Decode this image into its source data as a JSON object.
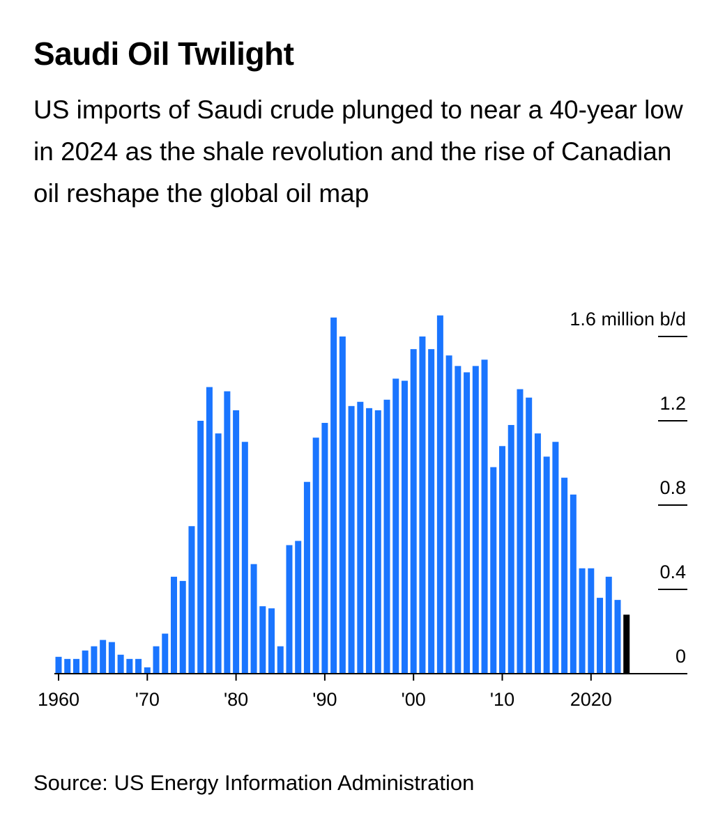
{
  "title": "Saudi Oil Twilight",
  "subtitle": "US imports of Saudi crude plunged to near a 40-year low in 2024 as the shale revolution and the rise of Canadian oil reshape the global oil map",
  "source": "Source: US Energy Information Administration",
  "colors": {
    "bar": "#1a75ff",
    "highlight": "#000000",
    "axis": "#000000"
  },
  "chart_data": {
    "type": "bar",
    "unit": "million b/d",
    "x": [
      1960,
      1961,
      1962,
      1963,
      1964,
      1965,
      1966,
      1967,
      1968,
      1969,
      1970,
      1971,
      1972,
      1973,
      1974,
      1975,
      1976,
      1977,
      1978,
      1979,
      1980,
      1981,
      1982,
      1983,
      1984,
      1985,
      1986,
      1987,
      1988,
      1989,
      1990,
      1991,
      1992,
      1993,
      1994,
      1995,
      1996,
      1997,
      1998,
      1999,
      2000,
      2001,
      2002,
      2003,
      2004,
      2005,
      2006,
      2007,
      2008,
      2009,
      2010,
      2011,
      2012,
      2013,
      2014,
      2015,
      2016,
      2017,
      2018,
      2019,
      2020,
      2021,
      2022,
      2023,
      2024
    ],
    "values": [
      0.08,
      0.07,
      0.07,
      0.11,
      0.13,
      0.16,
      0.15,
      0.09,
      0.07,
      0.07,
      0.03,
      0.13,
      0.19,
      0.46,
      0.44,
      0.7,
      1.2,
      1.36,
      1.14,
      1.34,
      1.25,
      1.1,
      0.52,
      0.32,
      0.31,
      0.13,
      0.61,
      0.63,
      0.91,
      1.12,
      1.19,
      1.69,
      1.6,
      1.27,
      1.29,
      1.26,
      1.25,
      1.3,
      1.4,
      1.39,
      1.54,
      1.6,
      1.54,
      1.7,
      1.51,
      1.46,
      1.43,
      1.46,
      1.49,
      0.98,
      1.08,
      1.18,
      1.35,
      1.31,
      1.14,
      1.03,
      1.1,
      0.93,
      0.85,
      0.5,
      0.5,
      0.36,
      0.46,
      0.35,
      0.28
    ],
    "highlight_last": true,
    "x_ticks": [
      {
        "year": 1960,
        "label": "1960"
      },
      {
        "year": 1970,
        "label": "'70"
      },
      {
        "year": 1980,
        "label": "'80"
      },
      {
        "year": 1990,
        "label": "'90"
      },
      {
        "year": 2000,
        "label": "'00"
      },
      {
        "year": 2010,
        "label": "'10"
      },
      {
        "year": 2020,
        "label": "2020"
      }
    ],
    "y_ticks": [
      {
        "value": 0,
        "label": "0"
      },
      {
        "value": 0.4,
        "label": "0.4"
      },
      {
        "value": 0.8,
        "label": "0.8"
      },
      {
        "value": 1.2,
        "label": "1.2"
      },
      {
        "value": 1.6,
        "label": "1.6 million b/d"
      }
    ],
    "ylim": [
      0,
      1.6
    ],
    "grid": false
  }
}
